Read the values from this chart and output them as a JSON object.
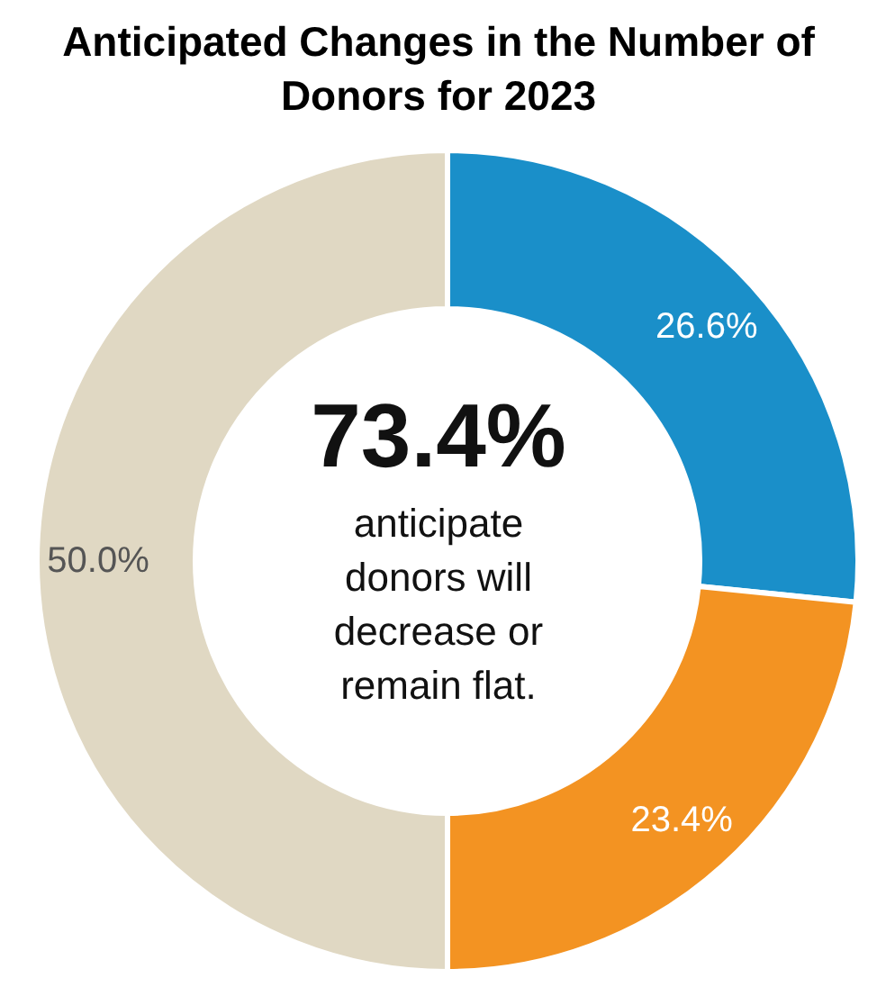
{
  "chart_data": {
    "type": "donut",
    "title": "Anticipated Changes in the Number of Donors for 2023",
    "categories": [
      null,
      null,
      null
    ],
    "values": [
      26.6,
      23.4,
      50.0
    ],
    "colors": [
      "#1a8fc9",
      "#f39322",
      "#e0d8c3"
    ],
    "value_labels": [
      "26.6%",
      "23.4%",
      "50.0%"
    ],
    "legend": false,
    "annotations": [
      "73.4%",
      "anticipate donors will decrease or remain flat."
    ]
  }
}
